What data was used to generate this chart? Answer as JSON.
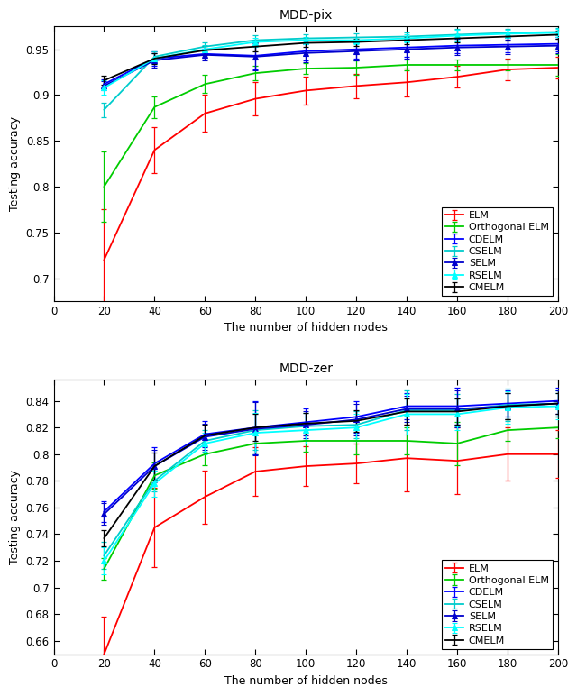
{
  "x": [
    20,
    40,
    60,
    80,
    100,
    120,
    140,
    160,
    180,
    200
  ],
  "plot1": {
    "title": "MDD-pix",
    "ylabel": "Testing accuracy",
    "xlabel": "The number of hidden nodes",
    "ylim": [
      0.675,
      0.975
    ],
    "yticks": [
      0.7,
      0.75,
      0.8,
      0.85,
      0.9,
      0.95
    ],
    "series": {
      "ELM": {
        "color": "#FF0000",
        "marker": null,
        "y": [
          0.72,
          0.84,
          0.88,
          0.896,
          0.905,
          0.91,
          0.914,
          0.92,
          0.928,
          0.93
        ],
        "yerr": [
          0.055,
          0.025,
          0.02,
          0.018,
          0.015,
          0.013,
          0.015,
          0.012,
          0.012,
          0.012
        ]
      },
      "Orthogonal ELM": {
        "color": "#00CC00",
        "marker": null,
        "y": [
          0.8,
          0.887,
          0.912,
          0.924,
          0.929,
          0.93,
          0.933,
          0.933,
          0.933,
          0.933
        ],
        "yerr": [
          0.038,
          0.012,
          0.01,
          0.008,
          0.006,
          0.008,
          0.006,
          0.006,
          0.006,
          0.012
        ]
      },
      "CDELM": {
        "color": "#0000FF",
        "marker": null,
        "y": [
          0.912,
          0.94,
          0.945,
          0.943,
          0.948,
          0.95,
          0.952,
          0.954,
          0.955,
          0.956
        ],
        "yerr": [
          0.005,
          0.008,
          0.006,
          0.015,
          0.01,
          0.01,
          0.01,
          0.008,
          0.008,
          0.008
        ]
      },
      "CSELM": {
        "color": "#00CCCC",
        "marker": null,
        "y": [
          0.884,
          0.942,
          0.953,
          0.96,
          0.962,
          0.963,
          0.964,
          0.966,
          0.968,
          0.969
        ],
        "yerr": [
          0.008,
          0.006,
          0.005,
          0.005,
          0.004,
          0.004,
          0.004,
          0.006,
          0.004,
          0.004
        ]
      },
      "SELM": {
        "color": "#0000CC",
        "marker": "^",
        "y": [
          0.91,
          0.938,
          0.944,
          0.942,
          0.946,
          0.948,
          0.95,
          0.952,
          0.953,
          0.954
        ],
        "yerr": [
          0.005,
          0.008,
          0.006,
          0.015,
          0.01,
          0.01,
          0.01,
          0.008,
          0.008,
          0.008
        ]
      },
      "RSELM": {
        "color": "#00FFFF",
        "marker": "^",
        "y": [
          0.908,
          0.94,
          0.95,
          0.958,
          0.96,
          0.96,
          0.962,
          0.965,
          0.967,
          0.968
        ],
        "yerr": [
          0.008,
          0.006,
          0.005,
          0.005,
          0.004,
          0.004,
          0.004,
          0.006,
          0.004,
          0.004
        ]
      },
      "CMELM": {
        "color": "#000000",
        "marker": null,
        "y": [
          0.916,
          0.94,
          0.949,
          0.953,
          0.957,
          0.958,
          0.96,
          0.962,
          0.964,
          0.966
        ],
        "yerr": [
          0.005,
          0.006,
          0.005,
          0.005,
          0.004,
          0.004,
          0.004,
          0.004,
          0.004,
          0.004
        ]
      }
    }
  },
  "plot2": {
    "title": "MDD-zer",
    "ylabel": "Testing accuracy",
    "xlabel": "The number of hidden nodes",
    "ylim": [
      0.65,
      0.856
    ],
    "yticks": [
      0.66,
      0.68,
      0.7,
      0.72,
      0.74,
      0.76,
      0.78,
      0.8,
      0.82,
      0.84
    ],
    "series": {
      "ELM": {
        "color": "#FF0000",
        "marker": null,
        "y": [
          0.65,
          0.745,
          0.768,
          0.787,
          0.791,
          0.793,
          0.797,
          0.795,
          0.8,
          0.8
        ],
        "yerr": [
          0.028,
          0.03,
          0.02,
          0.018,
          0.015,
          0.015,
          0.025,
          0.025,
          0.02,
          0.018
        ]
      },
      "Orthogonal ELM": {
        "color": "#00CC00",
        "marker": null,
        "y": [
          0.714,
          0.784,
          0.8,
          0.808,
          0.81,
          0.81,
          0.81,
          0.808,
          0.818,
          0.82
        ],
        "yerr": [
          0.008,
          0.01,
          0.008,
          0.008,
          0.008,
          0.01,
          0.01,
          0.016,
          0.008,
          0.008
        ]
      },
      "CDELM": {
        "color": "#0000FF",
        "marker": null,
        "y": [
          0.757,
          0.793,
          0.815,
          0.82,
          0.824,
          0.828,
          0.836,
          0.836,
          0.838,
          0.84
        ],
        "yerr": [
          0.008,
          0.012,
          0.01,
          0.02,
          0.01,
          0.012,
          0.01,
          0.014,
          0.01,
          0.01
        ]
      },
      "CSELM": {
        "color": "#00CCCC",
        "marker": null,
        "y": [
          0.724,
          0.78,
          0.81,
          0.818,
          0.821,
          0.822,
          0.833,
          0.833,
          0.837,
          0.838
        ],
        "yerr": [
          0.01,
          0.008,
          0.008,
          0.015,
          0.01,
          0.01,
          0.015,
          0.012,
          0.012,
          0.01
        ]
      },
      "SELM": {
        "color": "#0000CC",
        "marker": "^",
        "y": [
          0.755,
          0.791,
          0.813,
          0.819,
          0.822,
          0.826,
          0.834,
          0.834,
          0.836,
          0.838
        ],
        "yerr": [
          0.008,
          0.012,
          0.01,
          0.02,
          0.01,
          0.012,
          0.01,
          0.014,
          0.01,
          0.01
        ]
      },
      "RSELM": {
        "color": "#00FFFF",
        "marker": "^",
        "y": [
          0.72,
          0.778,
          0.808,
          0.816,
          0.818,
          0.82,
          0.83,
          0.83,
          0.835,
          0.836
        ],
        "yerr": [
          0.01,
          0.01,
          0.008,
          0.015,
          0.01,
          0.01,
          0.015,
          0.012,
          0.012,
          0.01
        ]
      },
      "CMELM": {
        "color": "#000000",
        "marker": null,
        "y": [
          0.737,
          0.791,
          0.814,
          0.82,
          0.823,
          0.825,
          0.832,
          0.832,
          0.836,
          0.838
        ],
        "yerr": [
          0.006,
          0.01,
          0.008,
          0.01,
          0.008,
          0.008,
          0.01,
          0.01,
          0.01,
          0.008
        ]
      }
    }
  },
  "legend_order": [
    "ELM",
    "Orthogonal ELM",
    "CDELM",
    "CSELM",
    "SELM",
    "RSELM",
    "CMELM"
  ]
}
